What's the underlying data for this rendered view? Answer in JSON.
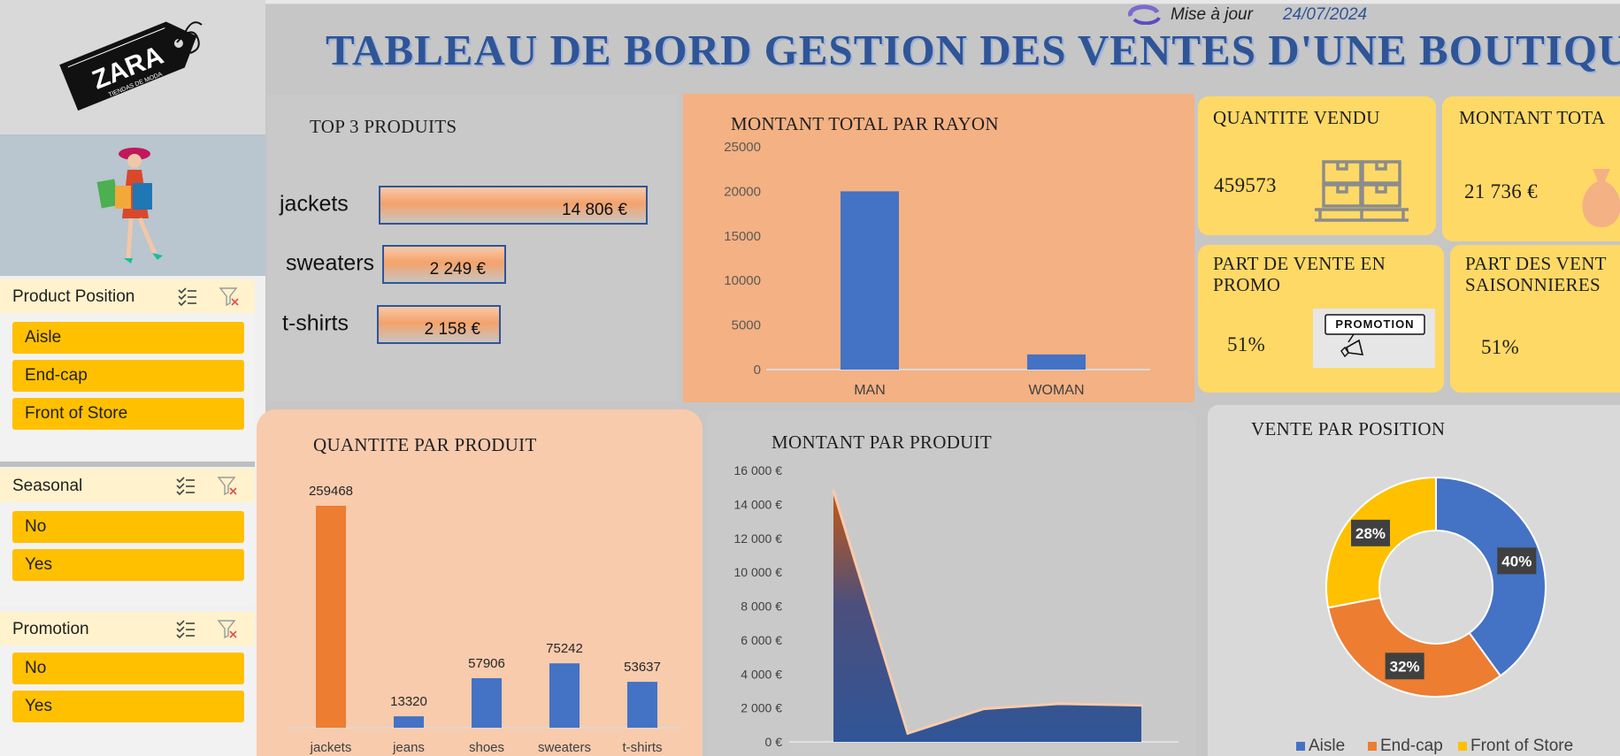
{
  "header": {
    "title": "TABLEAU DE BORD GESTION DES VENTES D'UNE BOUTIQUE ZARA",
    "update_label": "Mise à jour",
    "update_date": "24/07/2024"
  },
  "logo": {
    "brand": "ZARA",
    "tagline": "TIENDAS DE MODA"
  },
  "slicers": [
    {
      "title": "Product Position",
      "items": [
        "Aisle",
        "End-cap",
        "Front of Store"
      ]
    },
    {
      "title": "Seasonal",
      "items": [
        "No",
        "Yes"
      ]
    },
    {
      "title": "Promotion",
      "items": [
        "No",
        "Yes"
      ]
    }
  ],
  "top3": {
    "title": "TOP 3 PRODUITS",
    "items": [
      {
        "name": "jackets",
        "value": 14806,
        "label": "14 806 €"
      },
      {
        "name": "sweaters",
        "value": 2249,
        "label": "2 249 €"
      },
      {
        "name": "t-shirts",
        "value": 2158,
        "label": "2 158 €"
      }
    ]
  },
  "kpis": {
    "qty": {
      "title": "QUANTITE VENDU",
      "value": "459573"
    },
    "amount": {
      "title": "MONTANT TOTA",
      "value": "21 736 €"
    },
    "promo": {
      "title_line1": "PART DE VENTE EN",
      "title_line2": "PROMO",
      "value": "51%",
      "badge": "PROMOTION"
    },
    "seasonal": {
      "title_line1": "PART DES VENT",
      "title_line2": "SAISONNIERES",
      "value": "51%"
    }
  },
  "colors": {
    "blue": "#4472c4",
    "orange": "#ed7d31",
    "gold": "#ffc000",
    "title_blue": "#2f5597"
  },
  "chart_data": [
    {
      "id": "rayon",
      "type": "bar",
      "title": "MONTANT TOTAL PAR RAYON",
      "categories": [
        "MAN",
        "WOMAN"
      ],
      "values": [
        20000,
        1700
      ],
      "ylim": [
        0,
        25000
      ],
      "yticks": [
        "0",
        "5000",
        "10000",
        "15000",
        "20000",
        "25000"
      ],
      "yticks_values": [
        0,
        5000,
        10000,
        15000,
        20000,
        25000
      ]
    },
    {
      "id": "qty",
      "type": "bar",
      "title": "QUANTITE PAR PRODUIT",
      "categories": [
        "jackets",
        "jeans",
        "shoes",
        "sweaters",
        "t-shirts"
      ],
      "values": [
        259468,
        13320,
        57906,
        75242,
        53637
      ],
      "labels": [
        "259468",
        "13320",
        "57906",
        "75242",
        "53637"
      ]
    },
    {
      "id": "montant",
      "type": "area",
      "title": "MONTANT PAR PRODUIT",
      "values": [
        14806,
        500,
        1950,
        2249,
        2158
      ],
      "ylim": [
        0,
        16000
      ],
      "yticks": [
        "0 €",
        "2 000 €",
        "4 000 €",
        "6 000 €",
        "8 000 €",
        "10 000 €",
        "12 000 €",
        "14 000 €",
        "16 000 €"
      ]
    },
    {
      "id": "position",
      "type": "pie",
      "title": "VENTE PAR POSITION",
      "slices": [
        {
          "name": "Aisle",
          "value": 40,
          "label": "40%"
        },
        {
          "name": "End-cap",
          "value": 32,
          "label": "32%"
        },
        {
          "name": "Front of Store",
          "value": 28,
          "label": "28%"
        }
      ],
      "legend": "bottom"
    }
  ]
}
